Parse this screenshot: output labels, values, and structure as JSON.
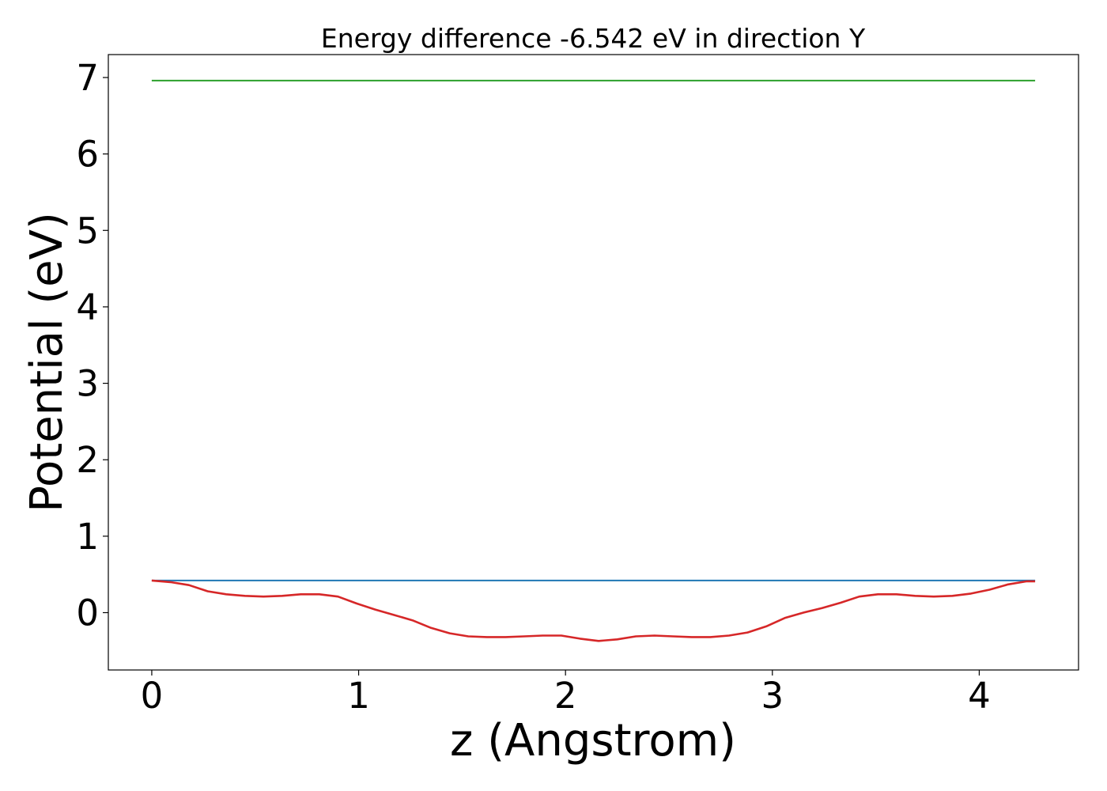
{
  "chart_data": {
    "type": "line",
    "title": "Energy difference -6.542 eV in direction Y",
    "xlabel": "z (Angstrom)",
    "ylabel": "Potential (eV)",
    "xlim": [
      -0.21,
      4.48
    ],
    "ylim": [
      -0.75,
      7.3
    ],
    "x_ticks": [
      0,
      1,
      2,
      3,
      4
    ],
    "x_tick_labels": [
      "0",
      "1",
      "2",
      "3",
      "4"
    ],
    "y_ticks": [
      0,
      1,
      2,
      3,
      4,
      5,
      6,
      7
    ],
    "y_tick_labels": [
      "0",
      "1",
      "2",
      "3",
      "4",
      "5",
      "6",
      "7"
    ],
    "grid": false,
    "series": [
      {
        "color": "#2ca02c",
        "x": [
          0,
          4.27
        ],
        "y": [
          6.96,
          6.96
        ]
      },
      {
        "color": "#1f77b4",
        "x": [
          0,
          4.27
        ],
        "y": [
          0.42,
          0.42
        ]
      },
      {
        "color": "#d62728",
        "x": [
          0,
          0.09,
          0.18,
          0.27,
          0.36,
          0.45,
          0.54,
          0.63,
          0.72,
          0.81,
          0.9,
          0.99,
          1.08,
          1.17,
          1.26,
          1.35,
          1.44,
          1.53,
          1.62,
          1.71,
          1.8,
          1.89,
          1.98,
          2.07,
          2.16,
          2.25,
          2.34,
          2.43,
          2.52,
          2.61,
          2.7,
          2.79,
          2.88,
          2.97,
          3.06,
          3.15,
          3.24,
          3.33,
          3.42,
          3.51,
          3.6,
          3.69,
          3.78,
          3.87,
          3.96,
          4.05,
          4.14,
          4.23,
          4.27
        ],
        "y": [
          0.42,
          0.4,
          0.36,
          0.28,
          0.24,
          0.22,
          0.21,
          0.22,
          0.24,
          0.24,
          0.21,
          0.12,
          0.04,
          -0.03,
          -0.1,
          -0.2,
          -0.27,
          -0.31,
          -0.32,
          -0.32,
          -0.31,
          -0.3,
          -0.3,
          -0.34,
          -0.37,
          -0.35,
          -0.31,
          -0.3,
          -0.31,
          -0.32,
          -0.32,
          -0.3,
          -0.26,
          -0.18,
          -0.07,
          0.0,
          0.06,
          0.13,
          0.21,
          0.24,
          0.24,
          0.22,
          0.21,
          0.22,
          0.25,
          0.3,
          0.37,
          0.41,
          0.41
        ]
      }
    ]
  }
}
